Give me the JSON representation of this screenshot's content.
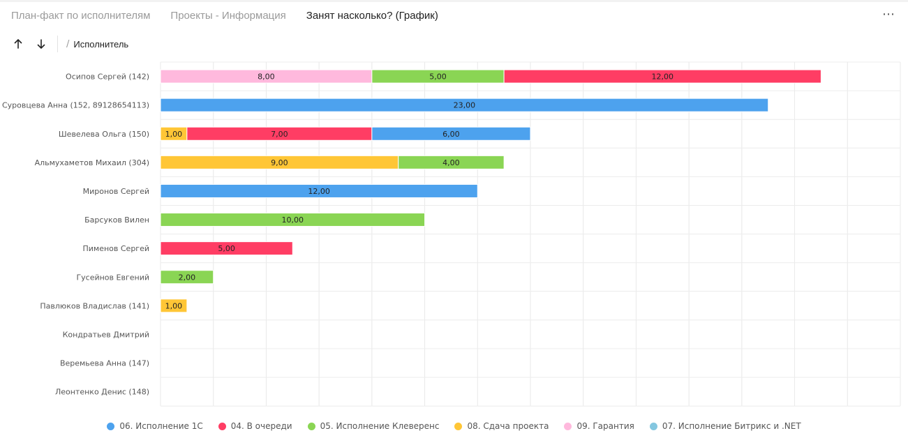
{
  "tabs": [
    {
      "label": "План-факт по исполнителям",
      "active": false
    },
    {
      "label": "Проекты - Информация",
      "active": false
    },
    {
      "label": "Занят насколько? (График)",
      "active": true
    }
  ],
  "toolbar": {
    "breadcrumb": "Исполнитель"
  },
  "chart_data": {
    "type": "bar",
    "orientation": "horizontal",
    "stacked": true,
    "grid": true,
    "legend_position": "bottom",
    "xlim": [
      0,
      28
    ],
    "x_ticks": [
      0,
      2,
      4,
      6,
      8,
      10,
      12,
      14,
      16,
      18,
      20,
      22,
      24,
      26,
      28
    ],
    "categories": [
      "Осипов Сергей (142)",
      "Суровцева Анна (152, 89128654113)",
      "Шевелева Ольга (150)",
      "Альмухаметов Михаил (304)",
      "Миронов Сергей",
      "Барсуков Вилен",
      "Пименов Сергей",
      "Гусейнов Евгений",
      "Павлюков Владислав (141)",
      "Кондратьев Дмитрий",
      "Веремьева Анна (147)",
      "Леонтенко Денис (148)"
    ],
    "series": [
      {
        "name": "06. Исполнение 1С",
        "color": "#4da2ee",
        "values": [
          0,
          23,
          6,
          0,
          12,
          0,
          0,
          0,
          0,
          0,
          0,
          0
        ]
      },
      {
        "name": "04. В очереди",
        "color": "#ff3d64",
        "values": [
          12,
          0,
          7,
          0,
          0,
          0,
          5,
          0,
          0,
          0,
          0,
          0
        ]
      },
      {
        "name": "05. Исполнение Клеверенс",
        "color": "#8ad554",
        "values": [
          5,
          0,
          0,
          4,
          0,
          10,
          0,
          2,
          0,
          0,
          0,
          0
        ]
      },
      {
        "name": "08. Сдача проекта",
        "color": "#ffc636",
        "values": [
          0,
          0,
          1,
          9,
          0,
          0,
          0,
          0,
          1,
          0,
          0,
          0
        ]
      },
      {
        "name": "09. Гарантия",
        "color": "#ffb9dd",
        "values": [
          8,
          0,
          0,
          0,
          0,
          0,
          0,
          0,
          0,
          0,
          0,
          0
        ]
      },
      {
        "name": "07. Исполнение Битрикс и .NET",
        "color": "#84c7e0",
        "values": [
          0,
          0,
          0,
          0,
          0,
          0,
          0,
          0,
          0,
          0,
          0,
          0
        ]
      }
    ],
    "stack_order": [
      [
        "09. Гарантия",
        "05. Исполнение Клеверенс",
        "04. В очереди"
      ],
      [
        "06. Исполнение 1С"
      ],
      [
        "08. Сдача проекта",
        "04. В очереди",
        "06. Исполнение 1С"
      ],
      [
        "08. Сдача проекта",
        "05. Исполнение Клеверенс"
      ],
      [
        "06. Исполнение 1С"
      ],
      [
        "05. Исполнение Клеверенс"
      ],
      [
        "04. В очереди"
      ],
      [
        "05. Исполнение Клеверенс"
      ],
      [
        "08. Сдача проекта"
      ],
      [],
      [],
      []
    ]
  }
}
